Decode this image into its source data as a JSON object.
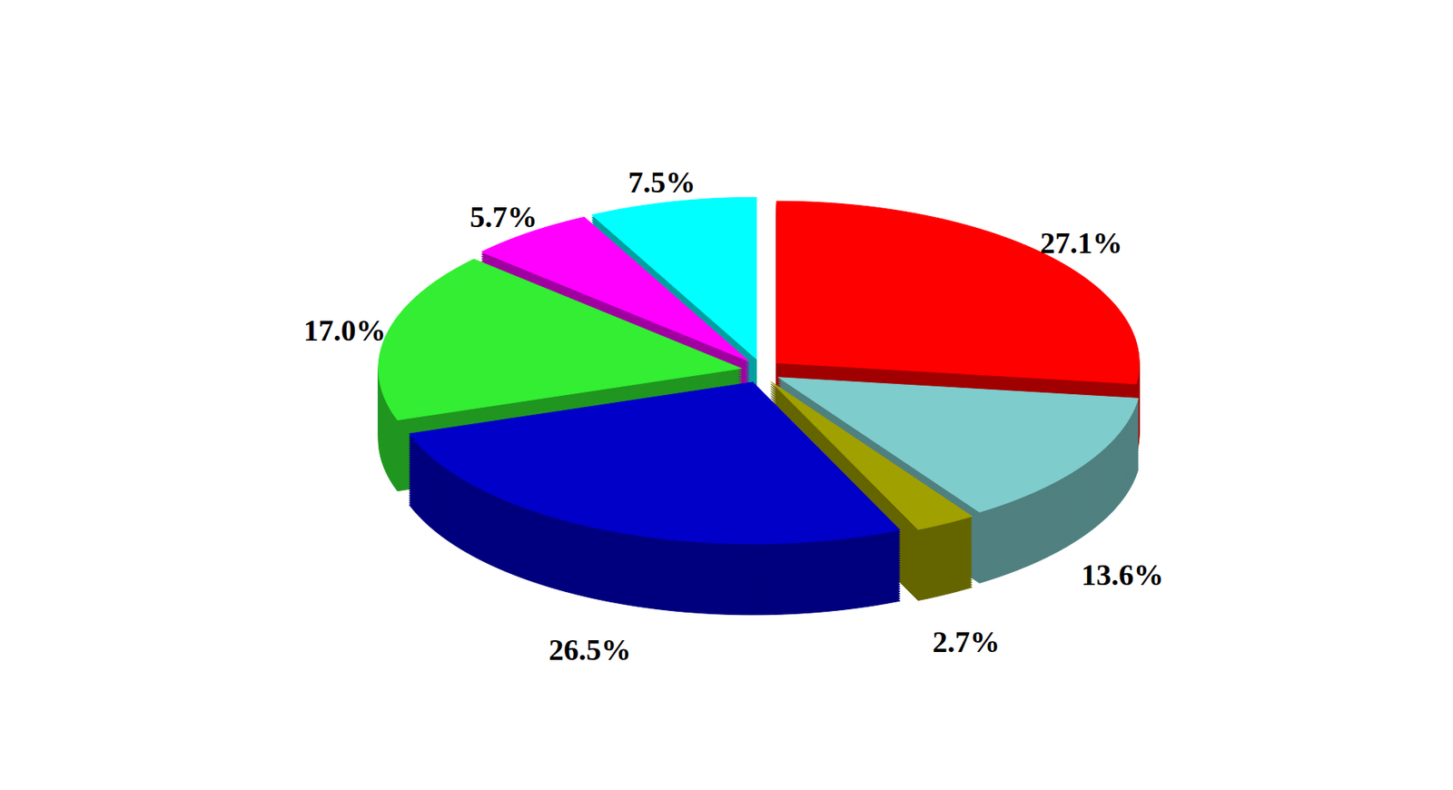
{
  "chart_data": {
    "type": "pie",
    "values": [
      27.1,
      13.6,
      2.7,
      26.5,
      17.0,
      5.7,
      7.5
    ],
    "value_labels": [
      "27.1%",
      "13.6%",
      "2.7%",
      "26.5%",
      "17.0%",
      "5.7%",
      "7.5%"
    ],
    "colors": [
      "#ff0000",
      "#7fcccc",
      "#a0a000",
      "#0000c8",
      "#33ee33",
      "#ff00ff",
      "#00ffff"
    ],
    "data_labels": true
  }
}
